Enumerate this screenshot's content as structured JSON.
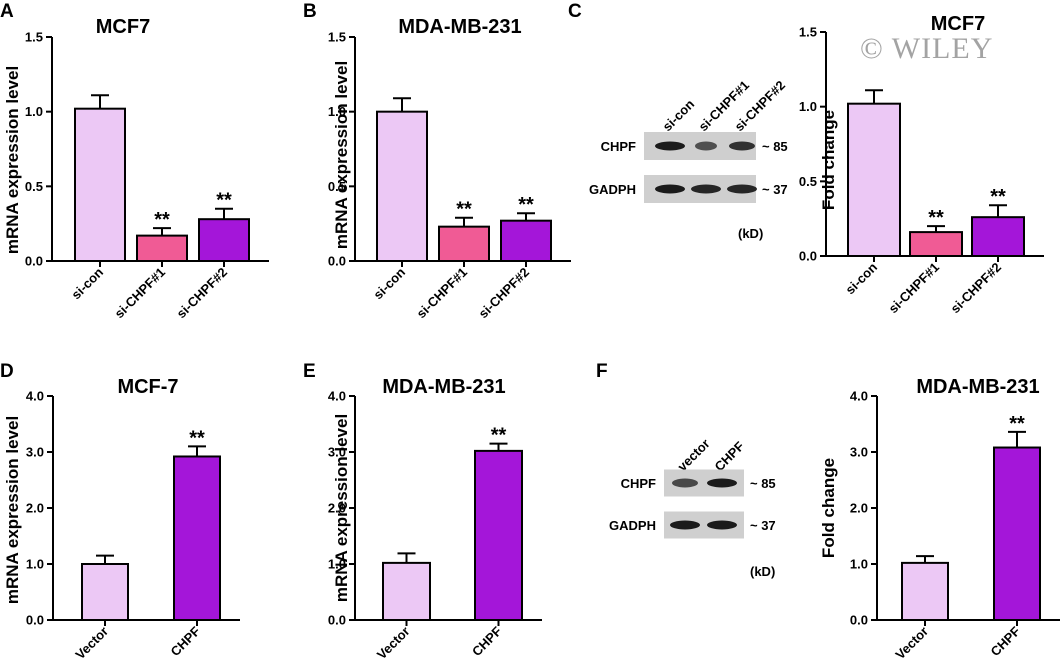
{
  "watermark": "© WILEY",
  "chart_data": [
    {
      "panel": "A",
      "type": "bar",
      "title": "MCF7",
      "ylabel": "mRNA expression level",
      "ylim": [
        0,
        1.5
      ],
      "yticks": [
        "0.0",
        "0.5",
        "1.0",
        "1.5"
      ],
      "categories": [
        "si-con",
        "si-CHPF#1",
        "si-CHPF#2"
      ],
      "values": [
        1.02,
        0.17,
        0.28
      ],
      "errors": [
        0.09,
        0.05,
        0.07
      ],
      "significance": [
        "",
        "**",
        "**"
      ],
      "colors": [
        "#ecc8f5",
        "#f05b95",
        "#a416d9"
      ]
    },
    {
      "panel": "B",
      "type": "bar",
      "title": "MDA-MB-231",
      "ylabel": "mRNA expression level",
      "ylim": [
        0,
        1.5
      ],
      "yticks": [
        "0.0",
        "0.5",
        "1.0",
        "1.5"
      ],
      "categories": [
        "si-con",
        "si-CHPF#1",
        "si-CHPF#2"
      ],
      "values": [
        1.0,
        0.23,
        0.27
      ],
      "errors": [
        0.09,
        0.06,
        0.05
      ],
      "significance": [
        "",
        "**",
        "**"
      ],
      "colors": [
        "#ecc8f5",
        "#f05b95",
        "#a416d9"
      ]
    },
    {
      "panel": "C",
      "type": "bar",
      "title": "MCF7",
      "ylabel": "Fold change",
      "ylim": [
        0,
        1.5
      ],
      "yticks": [
        "0.0",
        "0.5",
        "1.0",
        "1.5"
      ],
      "categories": [
        "si-con",
        "si-CHPF#1",
        "si-CHPF#2"
      ],
      "values": [
        1.02,
        0.16,
        0.26
      ],
      "errors": [
        0.09,
        0.04,
        0.08
      ],
      "significance": [
        "",
        "**",
        "**"
      ],
      "colors": [
        "#ecc8f5",
        "#f05b95",
        "#a416d9"
      ]
    },
    {
      "panel": "D",
      "type": "bar",
      "title": "MCF-7",
      "ylabel": "mRNA expression level",
      "ylim": [
        0,
        4
      ],
      "yticks": [
        "0.0",
        "1.0",
        "2.0",
        "3.0",
        "4.0"
      ],
      "categories": [
        "Vector",
        "CHPF"
      ],
      "values": [
        1.0,
        2.92
      ],
      "errors": [
        0.15,
        0.18
      ],
      "significance": [
        "",
        "**"
      ],
      "colors": [
        "#ecc8f5",
        "#a416d9"
      ]
    },
    {
      "panel": "E",
      "type": "bar",
      "title": "MDA-MB-231",
      "ylabel": "mRNA expression level",
      "ylim": [
        0,
        4
      ],
      "yticks": [
        "0.0",
        "1.0",
        "2.0",
        "3.0",
        "4.0"
      ],
      "categories": [
        "Vector",
        "CHPF"
      ],
      "values": [
        1.02,
        3.02
      ],
      "errors": [
        0.17,
        0.13
      ],
      "significance": [
        "",
        "**"
      ],
      "colors": [
        "#ecc8f5",
        "#a416d9"
      ]
    },
    {
      "panel": "F",
      "type": "bar",
      "title": "MDA-MB-231",
      "ylabel": "Fold change",
      "ylim": [
        0,
        4
      ],
      "yticks": [
        "0.0",
        "1.0",
        "2.0",
        "3.0",
        "4.0"
      ],
      "categories": [
        "Vector",
        "CHPF"
      ],
      "values": [
        1.02,
        3.08
      ],
      "errors": [
        0.12,
        0.28
      ],
      "significance": [
        "",
        "**"
      ],
      "colors": [
        "#ecc8f5",
        "#a416d9"
      ]
    }
  ],
  "blots": [
    {
      "panel": "C",
      "lanes": [
        "si-con",
        "si-CHPF#1",
        "si-CHPF#2"
      ],
      "rows": [
        {
          "label": "CHPF",
          "mw": "~ 85"
        },
        {
          "label": "GADPH",
          "mw": "~ 37"
        }
      ],
      "unit": "(kD)"
    },
    {
      "panel": "F",
      "lanes": [
        "vector",
        "CHPF"
      ],
      "rows": [
        {
          "label": "CHPF",
          "mw": "~ 85"
        },
        {
          "label": "GADPH",
          "mw": "~ 37"
        }
      ],
      "unit": "(kD)"
    }
  ]
}
